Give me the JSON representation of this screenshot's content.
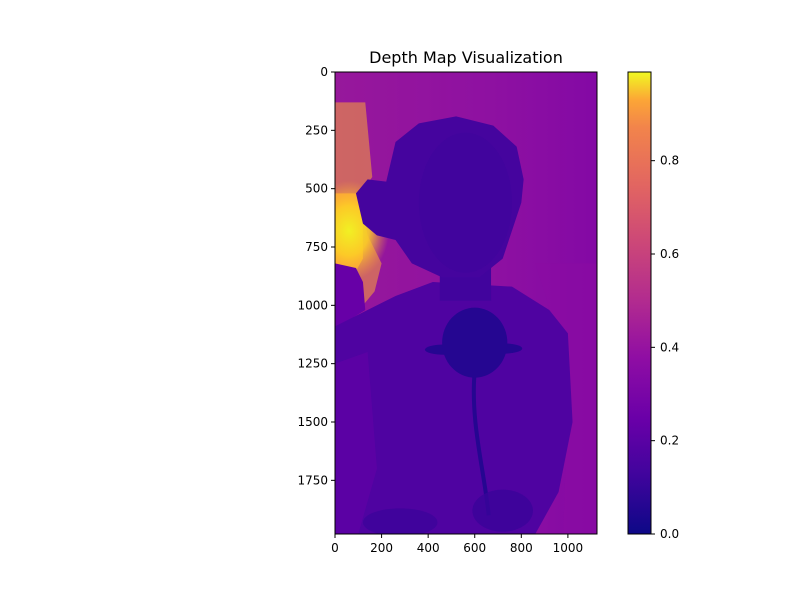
{
  "chart_data": {
    "type": "heatmap",
    "title": "Depth Map Visualization",
    "xlabel": "",
    "ylabel": "",
    "colormap": "plasma",
    "image_extent": {
      "width": 1125,
      "height": 1980
    },
    "xlim": [
      0,
      1125
    ],
    "ylim": [
      1980,
      0
    ],
    "x_ticks": [
      0,
      200,
      400,
      600,
      800,
      1000
    ],
    "y_ticks": [
      0,
      250,
      500,
      750,
      1000,
      1250,
      1500,
      1750
    ],
    "colorbar": {
      "range": [
        0,
        0.99
      ],
      "ticks": [
        0.0,
        0.2,
        0.4,
        0.6,
        0.8
      ],
      "tick_labels": [
        "0.0",
        "0.2",
        "0.4",
        "0.6",
        "0.8"
      ]
    },
    "grid": false,
    "regions": [
      {
        "name": "background-wall",
        "value": 0.3
      },
      {
        "name": "bright-left-background",
        "value": 0.92
      },
      {
        "name": "hair",
        "value": 0.14
      },
      {
        "name": "face",
        "value": 0.13
      },
      {
        "name": "body",
        "value": 0.17
      },
      {
        "name": "rose",
        "value": 0.06
      },
      {
        "name": "chair-edges",
        "value": 0.24
      }
    ]
  }
}
